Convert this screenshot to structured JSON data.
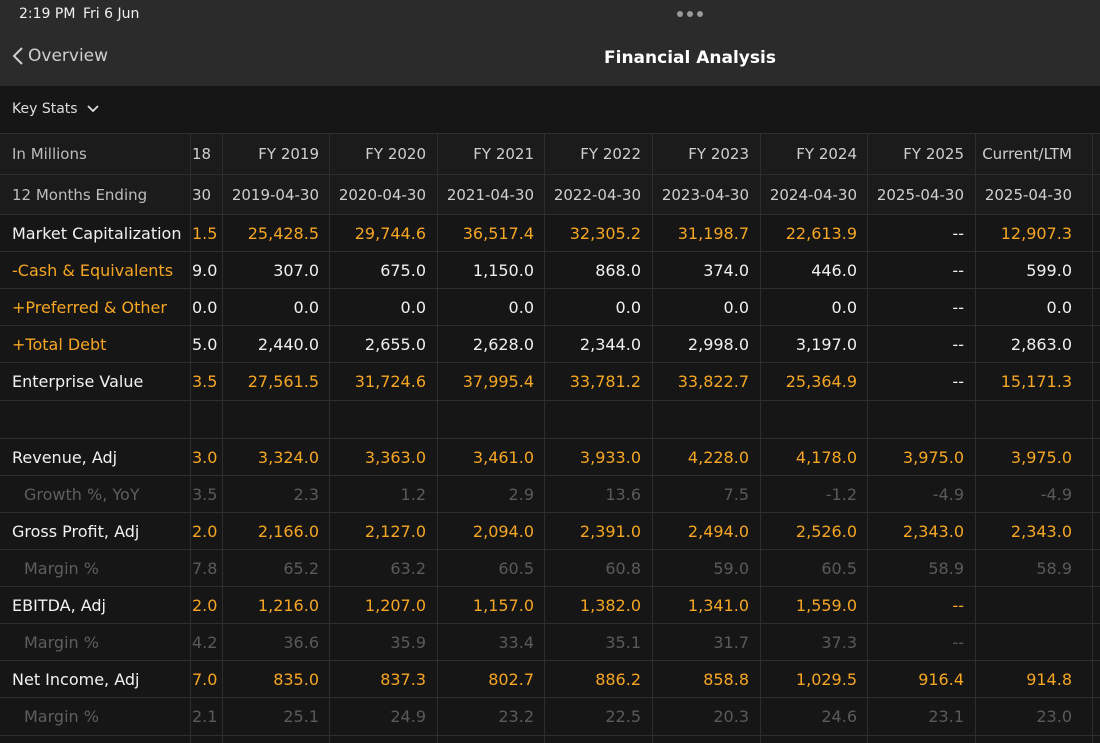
{
  "status_bar": {
    "time": "2:19 PM",
    "date": "Fri 6 Jun"
  },
  "nav": {
    "back_label": "Overview",
    "title": "Financial Analysis"
  },
  "key_stats": {
    "label": "Key Stats"
  },
  "header": {
    "label_col": "In Millions",
    "partial_col": "18",
    "columns": [
      "FY 2019",
      "FY 2020",
      "FY 2021",
      "FY 2022",
      "FY 2023",
      "FY 2024",
      "FY 2025",
      "Current/LTM"
    ]
  },
  "subheader": {
    "label_col": "12 Months Ending",
    "partial_col": "30",
    "columns": [
      "2019-04-30",
      "2020-04-30",
      "2021-04-30",
      "2022-04-30",
      "2023-04-30",
      "2024-04-30",
      "2025-04-30",
      "2025-04-30"
    ]
  },
  "rows": [
    {
      "label": "Market Capitalization",
      "partial": "1.5",
      "values": [
        "25,428.5",
        "29,744.6",
        "36,517.4",
        "32,305.2",
        "31,198.7",
        "22,613.9",
        "--",
        "12,907.3"
      ]
    },
    {
      "label": "-Cash & Equivalents",
      "partial": "9.0",
      "values": [
        "307.0",
        "675.0",
        "1,150.0",
        "868.0",
        "374.0",
        "446.0",
        "--",
        "599.0"
      ]
    },
    {
      "label": "+Preferred & Other",
      "partial": "0.0",
      "values": [
        "0.0",
        "0.0",
        "0.0",
        "0.0",
        "0.0",
        "0.0",
        "--",
        "0.0"
      ]
    },
    {
      "label": "+Total Debt",
      "partial": "5.0",
      "values": [
        "2,440.0",
        "2,655.0",
        "2,628.0",
        "2,344.0",
        "2,998.0",
        "3,197.0",
        "--",
        "2,863.0"
      ]
    },
    {
      "label": "Enterprise Value",
      "partial": "3.5",
      "values": [
        "27,561.5",
        "31,724.6",
        "37,995.4",
        "33,781.2",
        "33,822.7",
        "25,364.9",
        "--",
        "15,171.3"
      ]
    },
    {
      "label": "",
      "partial": "",
      "values": [
        "",
        "",
        "",
        "",
        "",
        "",
        "",
        ""
      ]
    },
    {
      "label": "Revenue, Adj",
      "partial": "3.0",
      "values": [
        "3,324.0",
        "3,363.0",
        "3,461.0",
        "3,933.0",
        "4,228.0",
        "4,178.0",
        "3,975.0",
        "3,975.0"
      ]
    },
    {
      "label": "Growth %, YoY",
      "partial": "3.5",
      "values": [
        "2.3",
        "1.2",
        "2.9",
        "13.6",
        "7.5",
        "-1.2",
        "-4.9",
        "-4.9"
      ]
    },
    {
      "label": "Gross Profit, Adj",
      "partial": "2.0",
      "values": [
        "2,166.0",
        "2,127.0",
        "2,094.0",
        "2,391.0",
        "2,494.0",
        "2,526.0",
        "2,343.0",
        "2,343.0"
      ]
    },
    {
      "label": "Margin %",
      "partial": "7.8",
      "values": [
        "65.2",
        "63.2",
        "60.5",
        "60.8",
        "59.0",
        "60.5",
        "58.9",
        "58.9"
      ]
    },
    {
      "label": "EBITDA, Adj",
      "partial": "2.0",
      "values": [
        "1,216.0",
        "1,207.0",
        "1,157.0",
        "1,382.0",
        "1,341.0",
        "1,559.0",
        "--",
        ""
      ]
    },
    {
      "label": "Margin %",
      "partial": "4.2",
      "values": [
        "36.6",
        "35.9",
        "33.4",
        "35.1",
        "31.7",
        "37.3",
        "--",
        ""
      ]
    },
    {
      "label": "Net Income, Adj",
      "partial": "7.0",
      "values": [
        "835.0",
        "837.3",
        "802.7",
        "886.2",
        "858.8",
        "1,029.5",
        "916.4",
        "914.8"
      ]
    },
    {
      "label": "Margin %",
      "partial": "2.1",
      "values": [
        "25.1",
        "24.9",
        "23.2",
        "22.5",
        "20.3",
        "24.6",
        "23.1",
        "23.0"
      ]
    }
  ],
  "colors": {
    "accent": "#f5a623",
    "background": "#161616",
    "bar": "#2b2b2b",
    "dim_text": "#5a5a5a"
  }
}
